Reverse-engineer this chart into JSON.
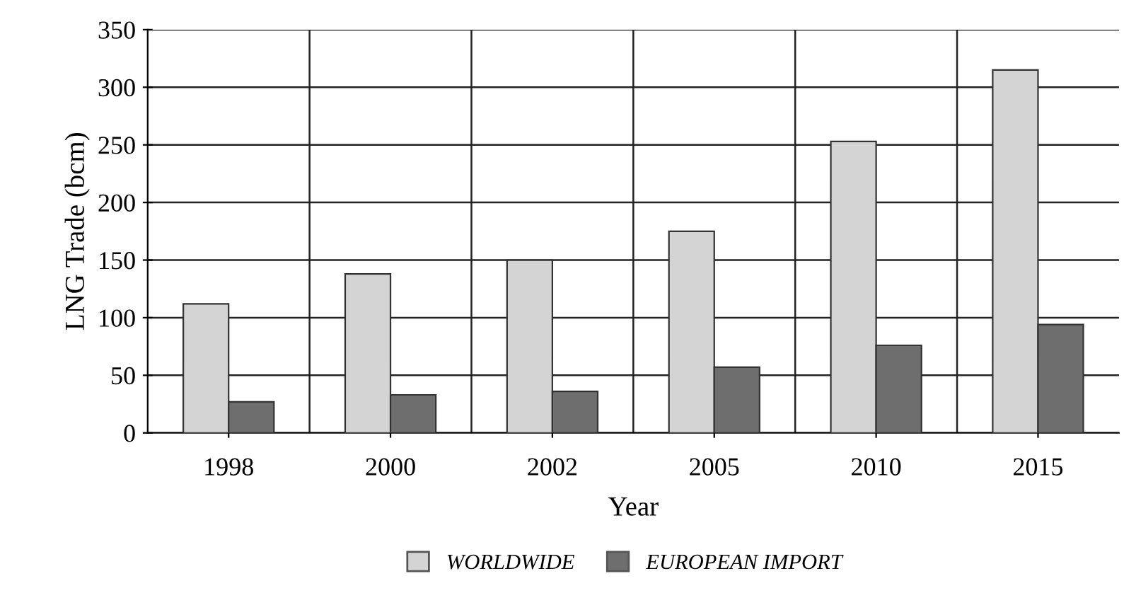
{
  "chart_data": {
    "type": "bar",
    "xlabel": "Year",
    "ylabel": "LNG Trade (bcm)",
    "categories": [
      "1998",
      "2000",
      "2002",
      "2005",
      "2010",
      "2015"
    ],
    "series": [
      {
        "name": "WORLDWIDE",
        "color": "#d4d4d4",
        "values": [
          112,
          138,
          150,
          175,
          253,
          315
        ]
      },
      {
        "name": "EUROPEAN IMPORT",
        "color": "#6e6e6e",
        "values": [
          27,
          33,
          36,
          57,
          76,
          94
        ]
      }
    ],
    "ylim": [
      0,
      350
    ],
    "yticks": [
      0,
      50,
      100,
      150,
      200,
      250,
      300,
      350
    ],
    "grid": true,
    "legend": "bottom"
  }
}
